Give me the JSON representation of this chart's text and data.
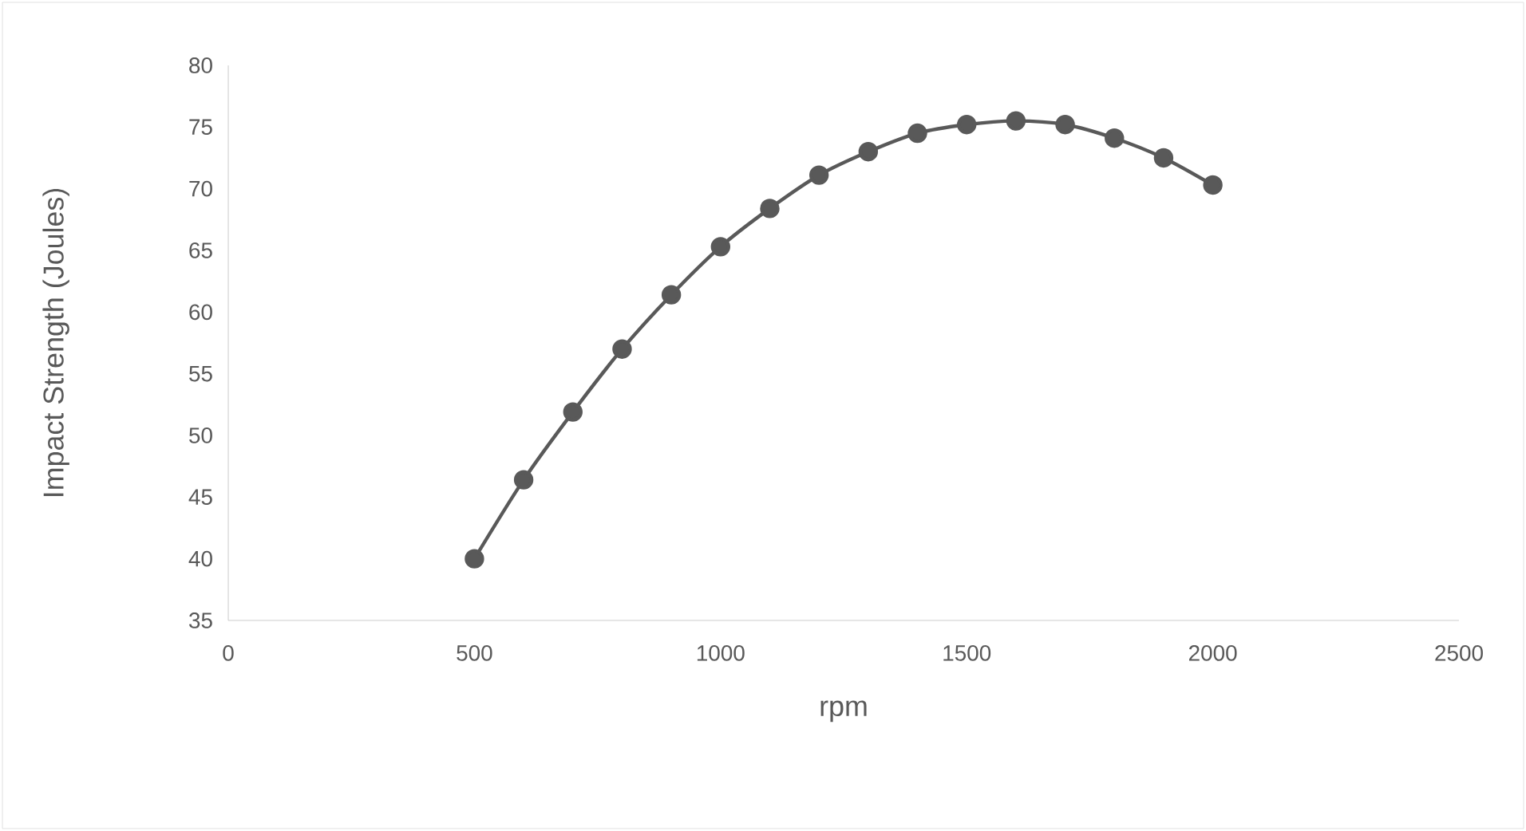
{
  "chart_data": {
    "type": "line",
    "xlabel": "rpm",
    "ylabel": "Impact Strength (Joules)",
    "x": [
      500,
      600,
      700,
      800,
      900,
      1000,
      1100,
      1200,
      1300,
      1400,
      1500,
      1600,
      1700,
      1800,
      1900,
      2000
    ],
    "series": [
      {
        "color": "#595959",
        "values": [
          40.0,
          46.4,
          51.9,
          57.0,
          61.4,
          65.3,
          68.4,
          71.1,
          73.0,
          74.5,
          75.2,
          75.5,
          75.2,
          74.1,
          72.5,
          70.3
        ]
      }
    ],
    "xlim": [
      0,
      2500
    ],
    "xticks": [
      0,
      500,
      1000,
      1500,
      2000,
      2500
    ],
    "ylim": [
      35,
      80
    ],
    "yticks": [
      35,
      40,
      45,
      50,
      55,
      60,
      65,
      70,
      75,
      80
    ],
    "marker": "circle",
    "line_style": "solid"
  }
}
